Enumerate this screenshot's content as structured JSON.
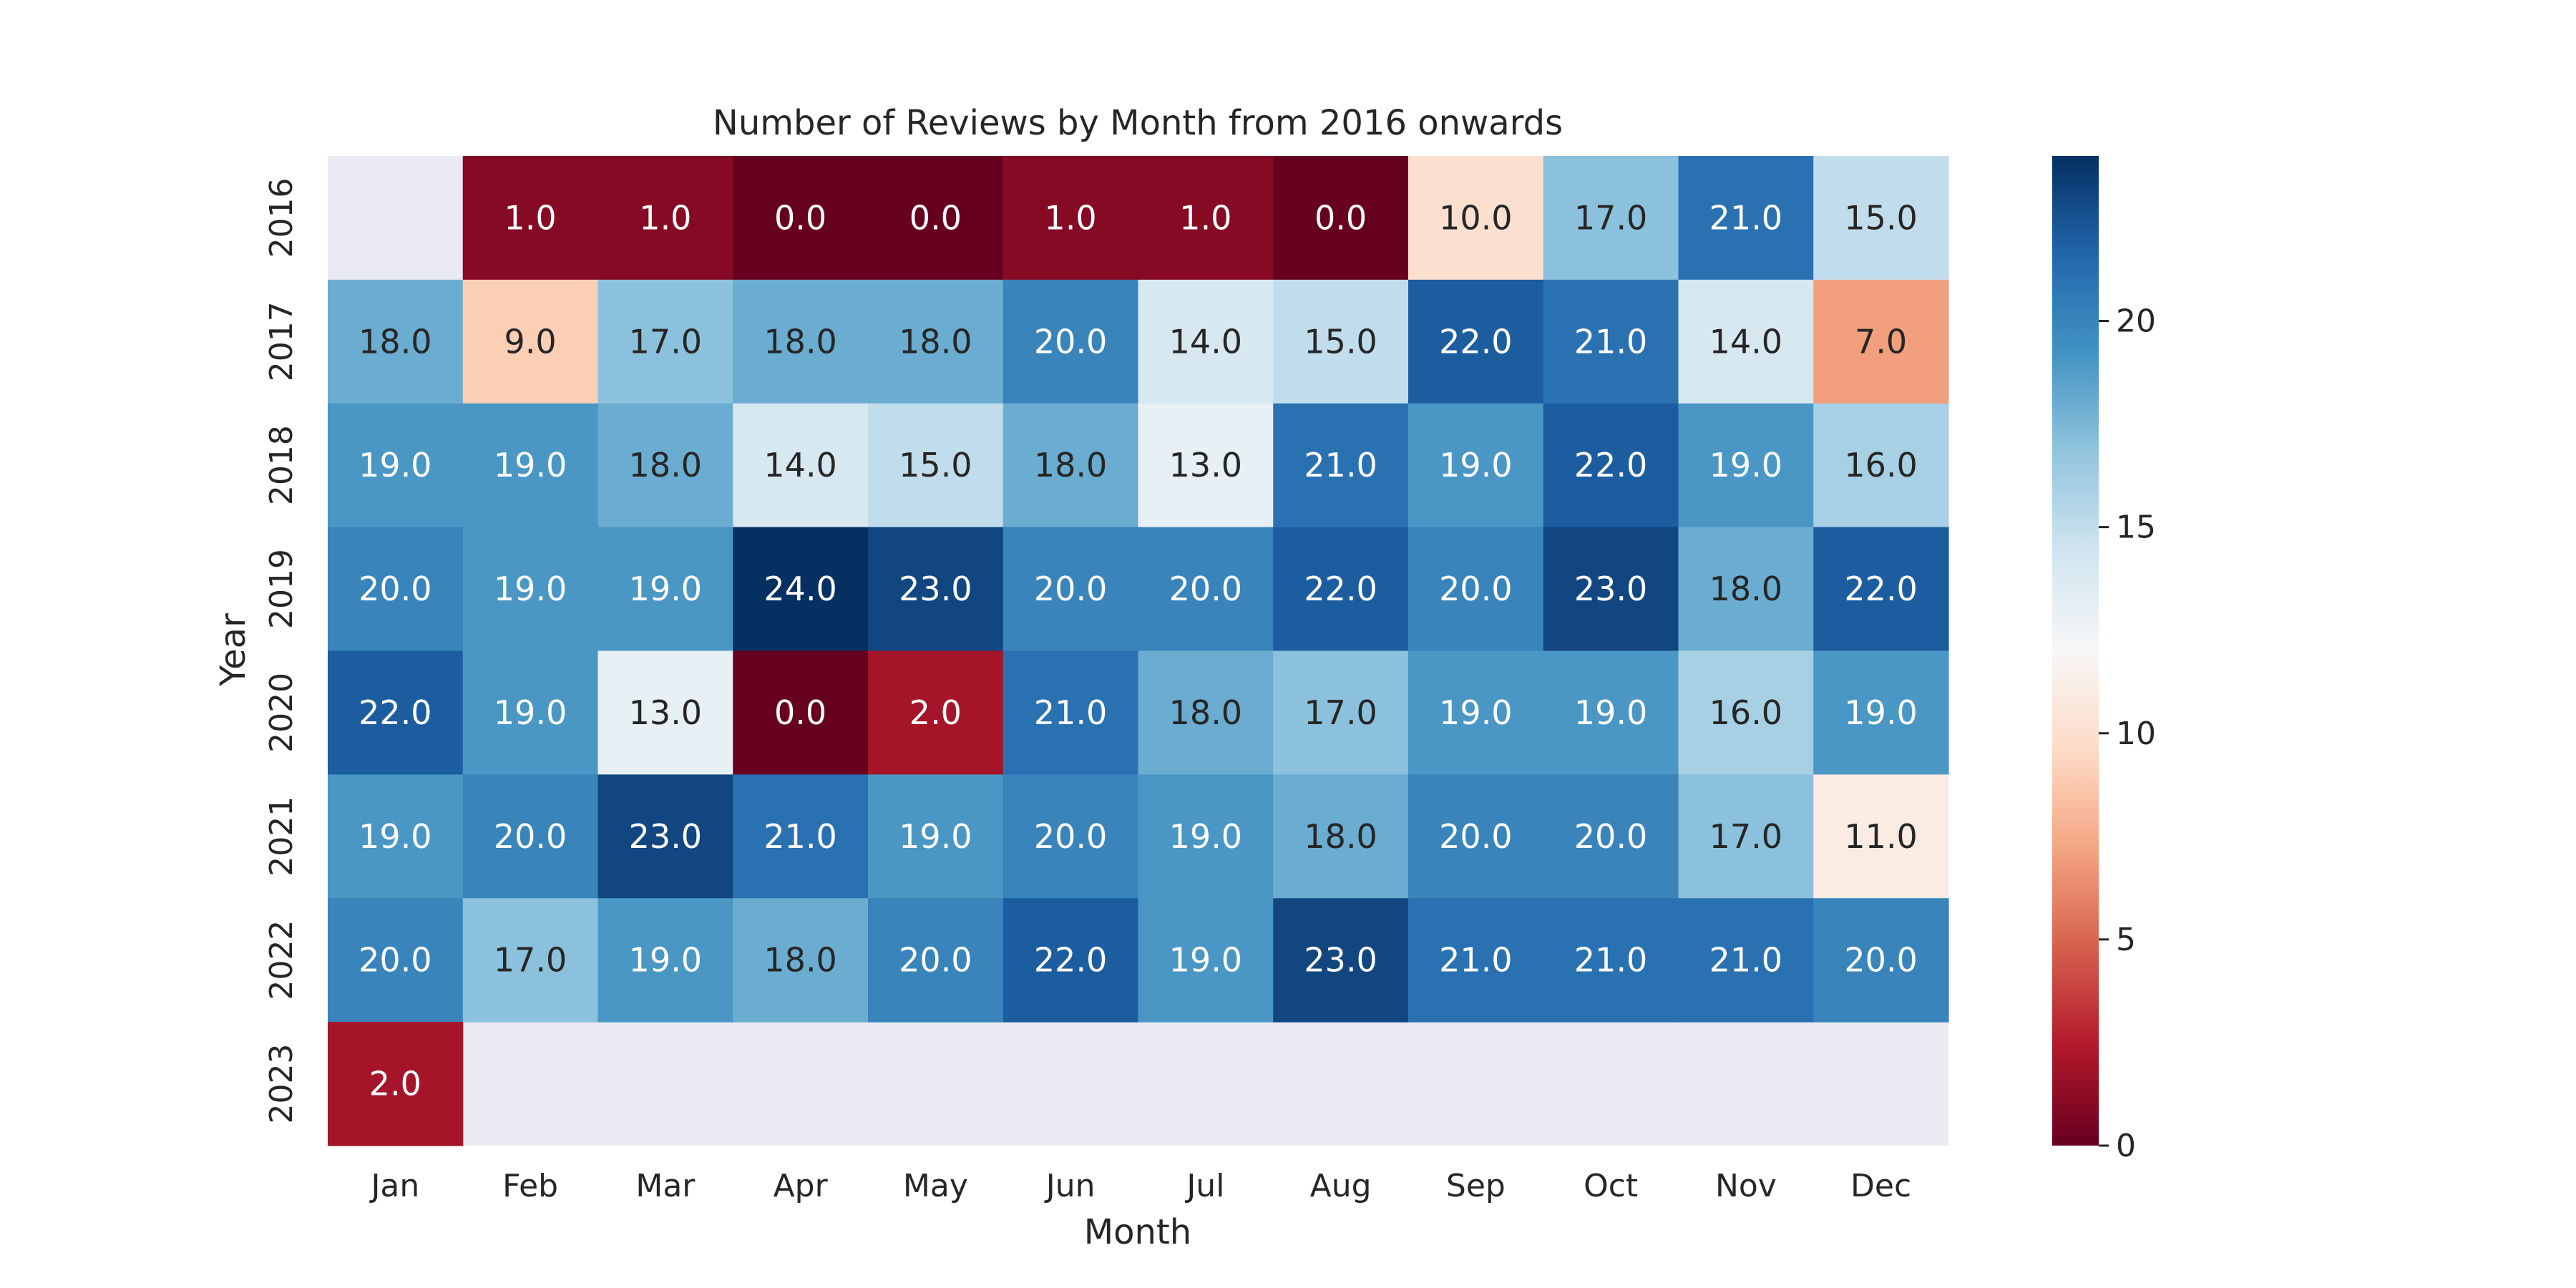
{
  "chart_data": {
    "type": "heatmap",
    "title": "Number of Reviews by Month from 2016 onwards",
    "xlabel": "Month",
    "ylabel": "Year",
    "x_categories": [
      "Jan",
      "Feb",
      "Mar",
      "Apr",
      "May",
      "Jun",
      "Jul",
      "Aug",
      "Sep",
      "Oct",
      "Nov",
      "Dec"
    ],
    "y_categories": [
      "2016",
      "2017",
      "2018",
      "2019",
      "2020",
      "2021",
      "2022",
      "2023"
    ],
    "values": [
      [
        null,
        1,
        1,
        0,
        0,
        1,
        1,
        0,
        10,
        17,
        21,
        15
      ],
      [
        18,
        9,
        17,
        18,
        18,
        20,
        14,
        15,
        22,
        21,
        14,
        7
      ],
      [
        19,
        19,
        18,
        14,
        15,
        18,
        13,
        21,
        19,
        22,
        19,
        16
      ],
      [
        20,
        19,
        19,
        24,
        23,
        20,
        20,
        22,
        20,
        23,
        18,
        22
      ],
      [
        22,
        19,
        13,
        0,
        2,
        21,
        18,
        17,
        19,
        19,
        16,
        19
      ],
      [
        19,
        20,
        23,
        21,
        19,
        20,
        19,
        18,
        20,
        20,
        17,
        11
      ],
      [
        20,
        17,
        19,
        18,
        20,
        22,
        19,
        23,
        21,
        21,
        21,
        20
      ],
      [
        2,
        null,
        null,
        null,
        null,
        null,
        null,
        null,
        null,
        null,
        null,
        null
      ]
    ],
    "value_format": "0.0",
    "colormap": "RdBu",
    "vmin": 0,
    "vmax": 24,
    "colorbar_ticks": [
      "0",
      "5",
      "10",
      "15",
      "20"
    ],
    "colorbar_tick_values": [
      0,
      5,
      10,
      15,
      20
    ],
    "missing_color": "#eaeaf2",
    "text_dark": "#262626",
    "text_light": "#ffffff"
  }
}
